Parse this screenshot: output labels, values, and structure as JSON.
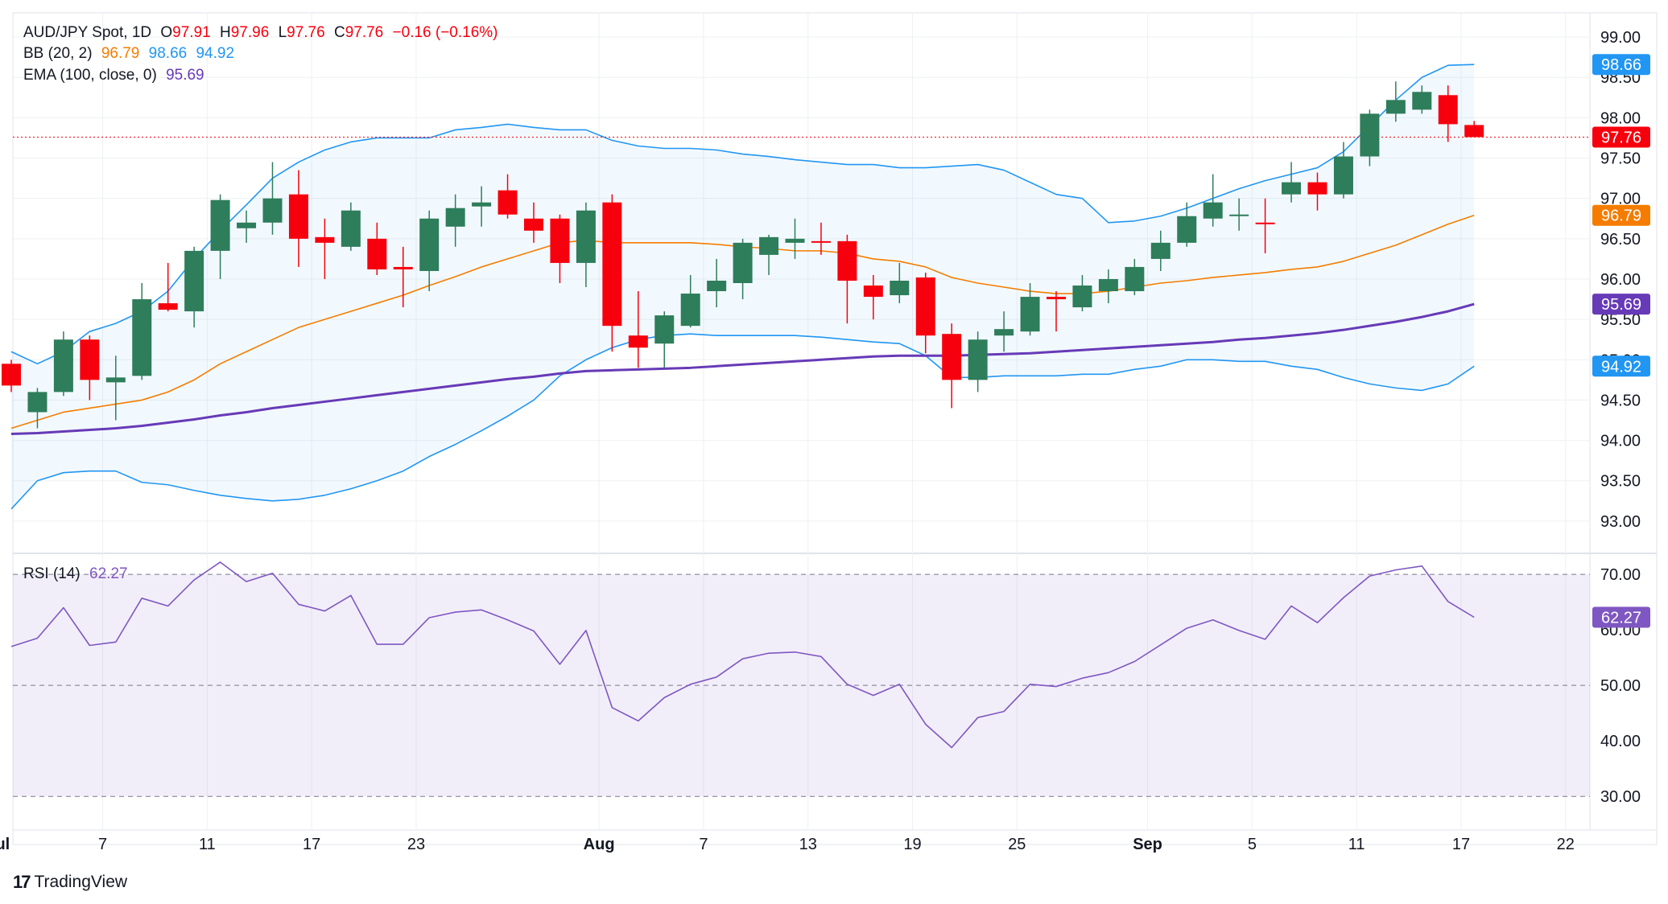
{
  "header": {
    "symbol": "AUD/JPY Spot, 1D",
    "open_label": "O",
    "open": "97.91",
    "high_label": "H",
    "high": "97.96",
    "low_label": "L",
    "low": "97.76",
    "close_label": "C",
    "close": "97.76",
    "change": "−0.16 (−0.16%)"
  },
  "bb_legend": {
    "label": "BB (20, 2)",
    "basis": "96.79",
    "upper": "98.66",
    "lower": "94.92"
  },
  "ema_legend": {
    "label": "EMA (100, close, 0)",
    "value": "95.69"
  },
  "rsi_legend": {
    "label": "RSI (14)",
    "value": "62.27"
  },
  "brand": {
    "name": "TradingView"
  },
  "colors": {
    "up": "#2e7d5b",
    "down": "#f7000e",
    "bb_band": "#2196f3",
    "bb_basis": "#f57c00",
    "ema": "#673ab7",
    "rsi": "#7e57c2",
    "text": "#131722",
    "grid": "#eef0f3",
    "bb_fill": "rgba(33,150,243,0.06)",
    "rsi_fill": "rgba(126,87,194,0.10)"
  },
  "chart_data": [
    {
      "type": "candlestick",
      "title": "AUD/JPY Spot, 1D",
      "ylim": [
        92.6,
        99.3
      ],
      "y_ticks": [
        "93.00",
        "93.50",
        "94.00",
        "94.50",
        "95.00",
        "95.50",
        "96.00",
        "96.50",
        "97.00",
        "97.50",
        "98.00",
        "98.50",
        "99.00"
      ],
      "x_ticks": [
        {
          "label": "Jul",
          "bar": -0.5
        },
        {
          "label": "7",
          "bar": 3.5
        },
        {
          "label": "11",
          "bar": 7.5
        },
        {
          "label": "17",
          "bar": 11.5
        },
        {
          "label": "23",
          "bar": 15.5
        },
        {
          "label": "Aug",
          "bar": 22.5
        },
        {
          "label": "7",
          "bar": 26.5
        },
        {
          "label": "13",
          "bar": 30.5
        },
        {
          "label": "19",
          "bar": 34.5
        },
        {
          "label": "25",
          "bar": 38.5
        },
        {
          "label": "Sep",
          "bar": 43.5
        },
        {
          "label": "5",
          "bar": 47.5
        },
        {
          "label": "11",
          "bar": 51.5
        },
        {
          "label": "17",
          "bar": 55.5
        },
        {
          "label": "22",
          "bar": 59.5
        }
      ],
      "last_close": 97.76,
      "candles": [
        {
          "o": 94.95,
          "h": 95.0,
          "l": 94.6,
          "c": 94.68
        },
        {
          "o": 94.35,
          "h": 94.65,
          "l": 94.15,
          "c": 94.6
        },
        {
          "o": 94.6,
          "h": 95.35,
          "l": 94.55,
          "c": 95.25
        },
        {
          "o": 95.25,
          "h": 95.3,
          "l": 94.5,
          "c": 94.75
        },
        {
          "o": 94.72,
          "h": 95.05,
          "l": 94.25,
          "c": 94.78
        },
        {
          "o": 94.8,
          "h": 95.95,
          "l": 94.75,
          "c": 95.75
        },
        {
          "o": 95.7,
          "h": 96.2,
          "l": 95.6,
          "c": 95.62
        },
        {
          "o": 95.6,
          "h": 96.4,
          "l": 95.4,
          "c": 96.35
        },
        {
          "o": 96.35,
          "h": 97.05,
          "l": 96.0,
          "c": 96.98
        },
        {
          "o": 96.63,
          "h": 96.85,
          "l": 96.45,
          "c": 96.7
        },
        {
          "o": 96.7,
          "h": 97.45,
          "l": 96.55,
          "c": 97.0
        },
        {
          "o": 97.05,
          "h": 97.35,
          "l": 96.15,
          "c": 96.5
        },
        {
          "o": 96.52,
          "h": 96.75,
          "l": 96.0,
          "c": 96.45
        },
        {
          "o": 96.4,
          "h": 96.95,
          "l": 96.35,
          "c": 96.85
        },
        {
          "o": 96.5,
          "h": 96.7,
          "l": 96.05,
          "c": 96.12
        },
        {
          "o": 96.15,
          "h": 96.4,
          "l": 95.65,
          "c": 96.12
        },
        {
          "o": 96.1,
          "h": 96.85,
          "l": 95.85,
          "c": 96.75
        },
        {
          "o": 96.65,
          "h": 97.05,
          "l": 96.4,
          "c": 96.88
        },
        {
          "o": 96.9,
          "h": 97.15,
          "l": 96.65,
          "c": 96.95
        },
        {
          "o": 97.1,
          "h": 97.3,
          "l": 96.75,
          "c": 96.8
        },
        {
          "o": 96.75,
          "h": 96.95,
          "l": 96.45,
          "c": 96.6
        },
        {
          "o": 96.75,
          "h": 96.8,
          "l": 95.95,
          "c": 96.2
        },
        {
          "o": 96.2,
          "h": 96.95,
          "l": 95.9,
          "c": 96.85
        },
        {
          "o": 96.95,
          "h": 97.05,
          "l": 95.1,
          "c": 95.42
        },
        {
          "o": 95.3,
          "h": 95.85,
          "l": 94.9,
          "c": 95.15
        },
        {
          "o": 95.2,
          "h": 95.6,
          "l": 94.9,
          "c": 95.55
        },
        {
          "o": 95.42,
          "h": 96.05,
          "l": 95.4,
          "c": 95.82
        },
        {
          "o": 95.85,
          "h": 96.25,
          "l": 95.65,
          "c": 95.98
        },
        {
          "o": 95.95,
          "h": 96.5,
          "l": 95.75,
          "c": 96.45
        },
        {
          "o": 96.3,
          "h": 96.55,
          "l": 96.05,
          "c": 96.52
        },
        {
          "o": 96.45,
          "h": 96.75,
          "l": 96.25,
          "c": 96.5
        },
        {
          "o": 96.47,
          "h": 96.7,
          "l": 96.3,
          "c": 96.45
        },
        {
          "o": 96.47,
          "h": 96.55,
          "l": 95.45,
          "c": 95.98
        },
        {
          "o": 95.92,
          "h": 96.05,
          "l": 95.5,
          "c": 95.78
        },
        {
          "o": 95.8,
          "h": 96.2,
          "l": 95.7,
          "c": 95.98
        },
        {
          "o": 96.02,
          "h": 96.08,
          "l": 95.08,
          "c": 95.3
        },
        {
          "o": 95.32,
          "h": 95.45,
          "l": 94.4,
          "c": 94.75
        },
        {
          "o": 94.75,
          "h": 95.35,
          "l": 94.6,
          "c": 95.25
        },
        {
          "o": 95.3,
          "h": 95.6,
          "l": 95.1,
          "c": 95.38
        },
        {
          "o": 95.35,
          "h": 95.95,
          "l": 95.3,
          "c": 95.78
        },
        {
          "o": 95.78,
          "h": 95.85,
          "l": 95.35,
          "c": 95.75
        },
        {
          "o": 95.65,
          "h": 96.05,
          "l": 95.6,
          "c": 95.92
        },
        {
          "o": 95.85,
          "h": 96.12,
          "l": 95.7,
          "c": 96.0
        },
        {
          "o": 95.85,
          "h": 96.25,
          "l": 95.8,
          "c": 96.15
        },
        {
          "o": 96.25,
          "h": 96.6,
          "l": 96.1,
          "c": 96.45
        },
        {
          "o": 96.45,
          "h": 96.95,
          "l": 96.4,
          "c": 96.78
        },
        {
          "o": 96.75,
          "h": 97.3,
          "l": 96.65,
          "c": 96.95
        },
        {
          "o": 96.78,
          "h": 97.0,
          "l": 96.6,
          "c": 96.8
        },
        {
          "o": 96.7,
          "h": 97.0,
          "l": 96.32,
          "c": 96.68
        },
        {
          "o": 97.05,
          "h": 97.45,
          "l": 96.95,
          "c": 97.2
        },
        {
          "o": 97.2,
          "h": 97.32,
          "l": 96.85,
          "c": 97.05
        },
        {
          "o": 97.05,
          "h": 97.7,
          "l": 97.0,
          "c": 97.52
        },
        {
          "o": 97.52,
          "h": 98.1,
          "l": 97.4,
          "c": 98.05
        },
        {
          "o": 98.05,
          "h": 98.45,
          "l": 97.95,
          "c": 98.22
        },
        {
          "o": 98.1,
          "h": 98.4,
          "l": 98.05,
          "c": 98.32
        },
        {
          "o": 98.28,
          "h": 98.4,
          "l": 97.7,
          "c": 97.92
        },
        {
          "o": 97.91,
          "h": 97.96,
          "l": 97.76,
          "c": 97.76
        }
      ],
      "bb_upper": [
        95.1,
        94.95,
        95.1,
        95.35,
        95.45,
        95.6,
        95.85,
        96.25,
        96.6,
        96.92,
        97.25,
        97.45,
        97.6,
        97.7,
        97.75,
        97.75,
        97.75,
        97.85,
        97.88,
        97.92,
        97.88,
        97.85,
        97.85,
        97.72,
        97.65,
        97.62,
        97.62,
        97.6,
        97.55,
        97.52,
        97.48,
        97.45,
        97.42,
        97.42,
        97.38,
        97.38,
        97.4,
        97.42,
        97.35,
        97.2,
        97.05,
        97.0,
        96.7,
        96.72,
        96.78,
        96.88,
        97.0,
        97.12,
        97.22,
        97.3,
        97.38,
        97.58,
        97.9,
        98.22,
        98.5,
        98.65,
        98.66
      ],
      "bb_lower": [
        93.15,
        93.5,
        93.6,
        93.62,
        93.62,
        93.48,
        93.45,
        93.38,
        93.32,
        93.28,
        93.25,
        93.27,
        93.32,
        93.4,
        93.5,
        93.62,
        93.8,
        93.95,
        94.12,
        94.3,
        94.5,
        94.8,
        95.0,
        95.15,
        95.25,
        95.3,
        95.32,
        95.3,
        95.3,
        95.3,
        95.3,
        95.28,
        95.25,
        95.22,
        95.2,
        95.05,
        94.78,
        94.78,
        94.8,
        94.8,
        94.8,
        94.82,
        94.82,
        94.88,
        94.92,
        95.0,
        95.0,
        94.98,
        94.98,
        94.92,
        94.88,
        94.78,
        94.7,
        94.65,
        94.62,
        94.7,
        94.92
      ],
      "bb_basis": [
        94.15,
        94.25,
        94.35,
        94.4,
        94.45,
        94.5,
        94.6,
        94.75,
        94.95,
        95.1,
        95.25,
        95.4,
        95.5,
        95.6,
        95.7,
        95.8,
        95.92,
        96.03,
        96.15,
        96.25,
        96.35,
        96.45,
        96.48,
        96.45,
        96.45,
        96.45,
        96.45,
        96.43,
        96.4,
        96.38,
        96.35,
        96.35,
        96.32,
        96.25,
        96.22,
        96.15,
        96.02,
        95.95,
        95.9,
        95.85,
        95.82,
        95.82,
        95.85,
        95.9,
        95.95,
        95.98,
        96.02,
        96.05,
        96.08,
        96.12,
        96.15,
        96.22,
        96.32,
        96.42,
        96.55,
        96.68,
        96.79
      ],
      "ema100": [
        94.08,
        94.09,
        94.11,
        94.13,
        94.15,
        94.18,
        94.22,
        94.26,
        94.31,
        94.35,
        94.4,
        94.44,
        94.48,
        94.52,
        94.56,
        94.6,
        94.64,
        94.68,
        94.72,
        94.76,
        94.79,
        94.83,
        94.86,
        94.87,
        94.88,
        94.89,
        94.9,
        94.92,
        94.94,
        94.96,
        94.98,
        95.0,
        95.02,
        95.04,
        95.05,
        95.05,
        95.05,
        95.06,
        95.07,
        95.08,
        95.1,
        95.12,
        95.14,
        95.16,
        95.18,
        95.2,
        95.22,
        95.25,
        95.27,
        95.3,
        95.33,
        95.37,
        95.42,
        95.47,
        95.53,
        95.6,
        95.69
      ]
    },
    {
      "type": "line",
      "title": "RSI (14)",
      "ylim": [
        28,
        73.5
      ],
      "y_ticks": [
        "30.00",
        "40.00",
        "50.00",
        "60.00",
        "70.00"
      ],
      "levels": [
        30,
        50,
        70
      ],
      "values": [
        57,
        58.5,
        64,
        57.2,
        57.8,
        65.7,
        64.3,
        69,
        72.2,
        68.7,
        70.2,
        64.6,
        63.4,
        66.2,
        57.4,
        57.4,
        62.2,
        63.2,
        63.6,
        61.8,
        59.8,
        53.8,
        59.9,
        46,
        43.6,
        47.8,
        50.2,
        51.5,
        54.8,
        55.8,
        56,
        55.2,
        50.2,
        48.2,
        50.2,
        43,
        38.8,
        44.2,
        45.3,
        50.2,
        49.8,
        51.3,
        52.3,
        54.3,
        57.3,
        60.3,
        61.8,
        59.9,
        58.3,
        64.3,
        61.3,
        65.8,
        69.7,
        70.8,
        71.5,
        65.1,
        62.27
      ]
    }
  ]
}
